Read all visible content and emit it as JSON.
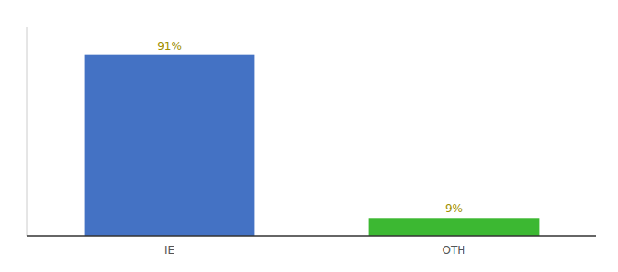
{
  "chart_data": {
    "type": "bar",
    "categories": [
      "IE",
      "OTH"
    ],
    "values": [
      91,
      9
    ],
    "colors": [
      "#4472c4",
      "#3cb832"
    ],
    "ylim": [
      0,
      105
    ],
    "data_labels": true,
    "value_labels": [
      "91%",
      "9%"
    ],
    "tick_labels": "x",
    "grid": false
  }
}
